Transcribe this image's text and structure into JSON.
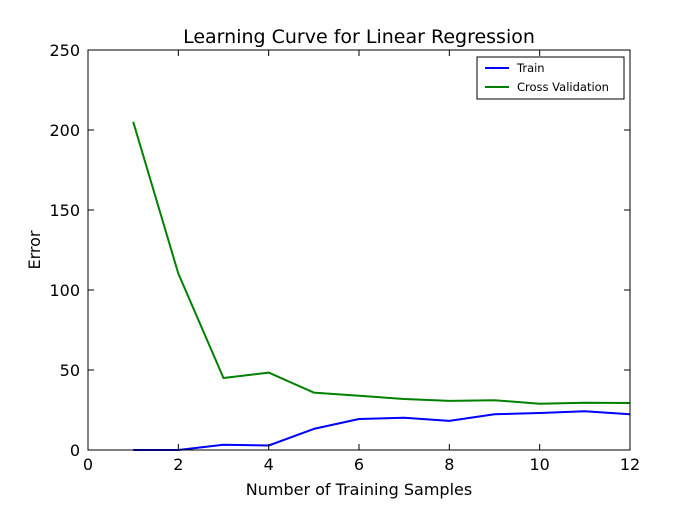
{
  "chart_data": {
    "type": "line",
    "title": "Learning Curve for Linear Regression",
    "xlabel": "Number of Training Samples",
    "ylabel": "Error",
    "xlim": [
      0,
      12
    ],
    "ylim": [
      0,
      250
    ],
    "xticks": [
      "0",
      "2",
      "4",
      "6",
      "8",
      "10",
      "12"
    ],
    "yticks": [
      "0",
      "50",
      "100",
      "150",
      "200",
      "250"
    ],
    "grid": false,
    "legend_position": "top-right",
    "series": [
      {
        "name": "Train",
        "color": "#0000ff",
        "x": [
          1,
          2,
          3,
          4,
          5,
          6,
          7,
          8,
          9,
          10,
          11,
          12
        ],
        "values": [
          0.0,
          0.0,
          3.3,
          2.8,
          13.2,
          19.4,
          20.1,
          18.2,
          22.4,
          23.1,
          24.2,
          22.4
        ]
      },
      {
        "name": "Cross Validation",
        "color": "#008000",
        "x": [
          1,
          2,
          3,
          4,
          5,
          6,
          7,
          8,
          9,
          10,
          11,
          12
        ],
        "values": [
          205.1,
          110.3,
          45.0,
          48.4,
          35.9,
          33.9,
          31.9,
          30.7,
          31.1,
          28.9,
          29.5,
          29.4
        ]
      }
    ]
  }
}
